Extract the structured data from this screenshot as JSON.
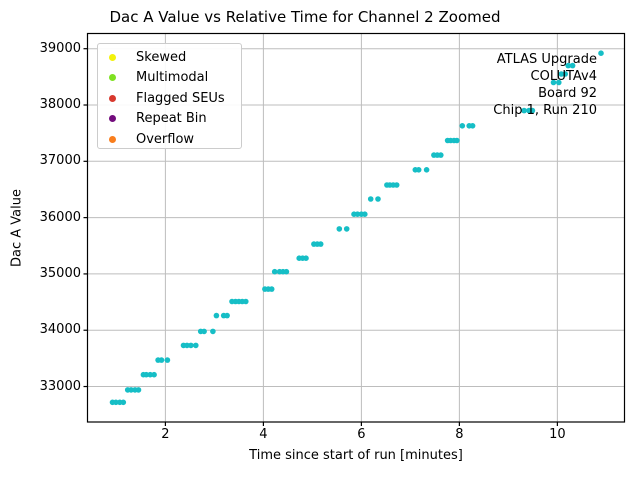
{
  "chart_data": {
    "type": "scatter",
    "title": "Dac A Value vs Relative Time for Channel 2 Zoomed",
    "xlabel": "Time since start of run [minutes]",
    "ylabel": "Dac A Value",
    "xlim": [
      0.41,
      11.37
    ],
    "ylim": [
      32370,
      39270
    ],
    "xticks": [
      2,
      4,
      6,
      8,
      10
    ],
    "yticks": [
      33000,
      34000,
      35000,
      36000,
      37000,
      38000,
      39000
    ],
    "grid": true,
    "point_color": "#16bec6",
    "point_radius": 2.8,
    "legend": {
      "position": "upper-left",
      "items": [
        {
          "label": "Skewed",
          "color": "#f2f20c"
        },
        {
          "label": "Multimodal",
          "color": "#7fe121"
        },
        {
          "label": "Flagged SEUs",
          "color": "#d8392e"
        },
        {
          "label": "Repeat Bin",
          "color": "#730c7d"
        },
        {
          "label": "Overflow",
          "color": "#f97e1d"
        }
      ]
    },
    "annotations": [
      "ATLAS Upgrade",
      "COLUTAv4",
      "Board 92",
      "Chip 1, Run 210"
    ],
    "series": [
      {
        "name": "Channel 2 Dac A",
        "clusters": [
          {
            "value": 32720,
            "times": [
              0.92,
              0.99,
              1.07,
              1.14
            ]
          },
          {
            "value": 32940,
            "times": [
              1.23,
              1.3,
              1.38,
              1.45
            ]
          },
          {
            "value": 33210,
            "times": [
              1.55,
              1.61,
              1.69,
              1.77
            ]
          },
          {
            "value": 33470,
            "times": [
              1.85,
              1.92,
              2.04
            ]
          },
          {
            "value": 33730,
            "times": [
              2.37,
              2.44,
              2.52,
              2.62
            ]
          },
          {
            "value": 33980,
            "times": [
              2.72,
              2.79,
              2.97
            ]
          },
          {
            "value": 34260,
            "times": [
              3.04,
              3.19,
              3.26
            ]
          },
          {
            "value": 34510,
            "times": [
              3.36,
              3.43,
              3.5,
              3.57,
              3.64
            ]
          },
          {
            "value": 34730,
            "times": [
              4.03,
              4.1,
              4.17
            ]
          },
          {
            "value": 35040,
            "times": [
              4.23,
              4.33,
              4.4,
              4.47
            ]
          },
          {
            "value": 35280,
            "times": [
              4.73,
              4.8,
              4.87
            ]
          },
          {
            "value": 35530,
            "times": [
              5.03,
              5.1,
              5.17
            ]
          },
          {
            "value": 35800,
            "times": [
              5.55,
              5.7
            ]
          },
          {
            "value": 36060,
            "times": [
              5.85,
              5.92,
              6.0,
              6.07
            ]
          },
          {
            "value": 36330,
            "times": [
              6.19,
              6.34
            ]
          },
          {
            "value": 36580,
            "times": [
              6.52,
              6.58,
              6.65,
              6.72
            ]
          },
          {
            "value": 36850,
            "times": [
              7.1,
              7.17,
              7.33
            ]
          },
          {
            "value": 37110,
            "times": [
              7.48,
              7.55,
              7.62
            ]
          },
          {
            "value": 37370,
            "times": [
              7.76,
              7.82,
              7.89,
              7.95
            ]
          },
          {
            "value": 37630,
            "times": [
              8.06,
              8.2,
              8.27
            ]
          },
          {
            "value": 37900,
            "times": [
              9.32,
              9.42,
              9.49
            ]
          },
          {
            "value": 38400,
            "times": [
              9.92,
              10.03
            ]
          },
          {
            "value": 38550,
            "times": [
              10.08,
              10.16
            ]
          },
          {
            "value": 38700,
            "times": [
              10.22,
              10.31
            ]
          },
          {
            "value": 38920,
            "times": [
              10.89
            ]
          }
        ]
      }
    ]
  }
}
